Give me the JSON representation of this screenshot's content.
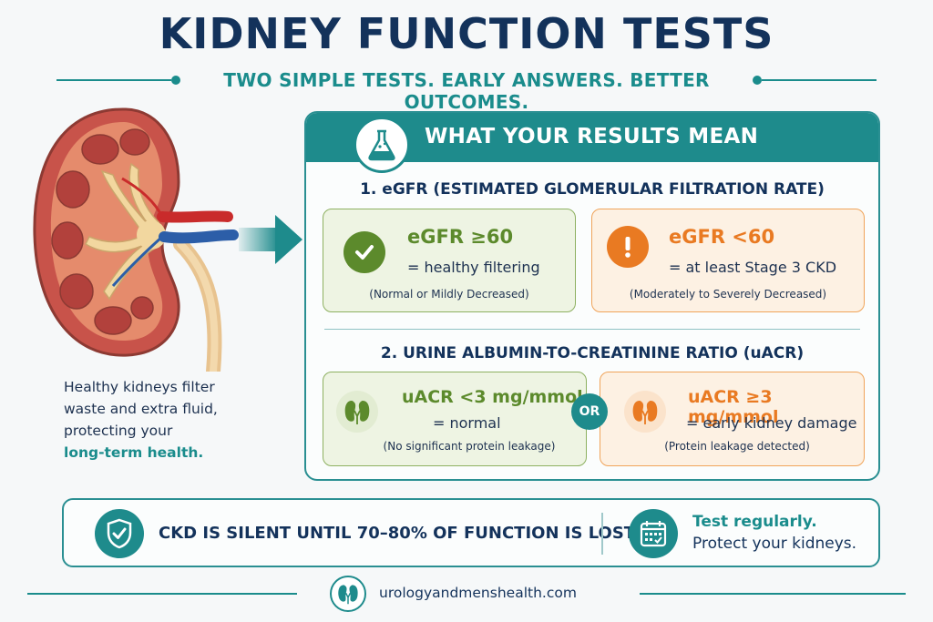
{
  "header": {
    "title": "KIDNEY FUNCTION TESTS",
    "subtitle": "TWO SIMPLE TESTS. EARLY ANSWERS. BETTER OUTCOMES."
  },
  "side": {
    "line1": "Healthy kidneys filter",
    "line2": "waste and extra fluid,",
    "line3": "protecting your",
    "highlight": "long-term health."
  },
  "panel": {
    "heading": "WHAT YOUR RESULTS MEAN",
    "section1_title": "1. eGFR (ESTIMATED GLOMERULAR FILTRATION RATE)",
    "section2_title": "2. URINE ALBUMIN-TO-CREATININE RATIO (uACR)",
    "cards": [
      {
        "main": "eGFR ≥60",
        "eq": "= healthy filtering",
        "note": "(Normal or Mildly Decreased)"
      },
      {
        "main": "eGFR <60",
        "eq": "= at least Stage 3 CKD",
        "note": "(Moderately to Severely Decreased)"
      },
      {
        "main": "uACR <3 mg/mmol",
        "eq": "= normal",
        "note": "(No significant protein leakage)"
      },
      {
        "main": "uACR ≥3 mg/mmol",
        "eq": "= early kidney damage",
        "note": "(Protein leakage detected)"
      }
    ],
    "or_label": "OR"
  },
  "bottom": {
    "message": "CKD IS SILENT UNTIL 70–80% OF FUNCTION IS LOST.",
    "tip_line1": "Test regularly.",
    "tip_line2": "Protect your kidneys."
  },
  "footer": {
    "url": "urologyandmenshealth.com"
  },
  "colors": {
    "navy": "#13325b",
    "teal": "#1e8b8c",
    "green": "#5c8a2c",
    "orange": "#e97a22"
  },
  "icons": [
    "kidney-illustration",
    "arrow-right-icon",
    "flask-icon",
    "check-icon",
    "exclamation-icon",
    "kidney-icon",
    "shield-check-icon",
    "calendar-icon"
  ]
}
